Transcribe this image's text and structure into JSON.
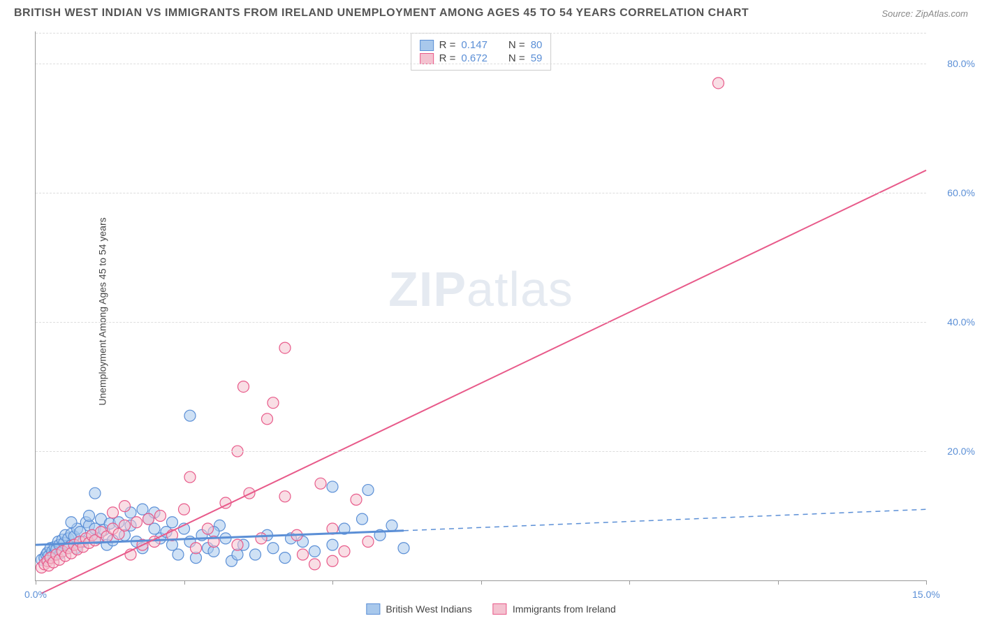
{
  "title": "BRITISH WEST INDIAN VS IMMIGRANTS FROM IRELAND UNEMPLOYMENT AMONG AGES 45 TO 54 YEARS CORRELATION CHART",
  "source": "Source: ZipAtlas.com",
  "y_axis_label": "Unemployment Among Ages 45 to 54 years",
  "watermark_bold": "ZIP",
  "watermark_light": "atlas",
  "chart": {
    "type": "scatter",
    "xlim": [
      0,
      15
    ],
    "ylim": [
      0,
      85
    ],
    "x_ticks": [
      0,
      2.5,
      5,
      7.5,
      10,
      12.5,
      15
    ],
    "y_ticks": [
      20,
      40,
      60,
      80
    ],
    "x_tick_labels": {
      "0": "0.0%",
      "15": "15.0%"
    },
    "y_tick_labels": {
      "20": "20.0%",
      "40": "40.0%",
      "60": "60.0%",
      "80": "80.0%"
    },
    "background_color": "#ffffff",
    "grid_color": "#dddddd",
    "axis_color": "#999999",
    "tick_label_color": "#5b8fd6",
    "marker_radius": 8,
    "marker_opacity": 0.55,
    "series": [
      {
        "name": "British West Indians",
        "color_fill": "#a8c8ec",
        "color_stroke": "#5b8fd6",
        "r_value": "0.147",
        "n_value": "80",
        "trend": {
          "x1": 0,
          "y1": 5.5,
          "x2": 6.2,
          "y2": 7.7,
          "solid_until_x": 6.2,
          "dash_to_x": 15,
          "dash_y2": 11.0,
          "stroke_width": 3
        },
        "points": [
          [
            0.1,
            3.2
          ],
          [
            0.15,
            3.5
          ],
          [
            0.18,
            4.0
          ],
          [
            0.2,
            4.3
          ],
          [
            0.22,
            3.8
          ],
          [
            0.25,
            5.0
          ],
          [
            0.28,
            4.5
          ],
          [
            0.3,
            3.9
          ],
          [
            0.32,
            5.2
          ],
          [
            0.35,
            4.8
          ],
          [
            0.38,
            6.0
          ],
          [
            0.4,
            5.5
          ],
          [
            0.42,
            4.2
          ],
          [
            0.45,
            6.3
          ],
          [
            0.48,
            5.8
          ],
          [
            0.5,
            7.0
          ],
          [
            0.55,
            6.5
          ],
          [
            0.58,
            5.3
          ],
          [
            0.6,
            7.2
          ],
          [
            0.65,
            6.8
          ],
          [
            0.68,
            5.0
          ],
          [
            0.7,
            8.0
          ],
          [
            0.75,
            7.5
          ],
          [
            0.8,
            6.0
          ],
          [
            0.85,
            9.0
          ],
          [
            0.9,
            8.5
          ],
          [
            0.95,
            7.0
          ],
          [
            1.0,
            8.0
          ],
          [
            1.05,
            6.5
          ],
          [
            1.1,
            9.5
          ],
          [
            1.15,
            7.8
          ],
          [
            1.2,
            5.5
          ],
          [
            1.25,
            8.8
          ],
          [
            1.3,
            6.2
          ],
          [
            1.0,
            13.5
          ],
          [
            1.4,
            9.0
          ],
          [
            1.5,
            7.0
          ],
          [
            1.6,
            8.5
          ],
          [
            1.7,
            6.0
          ],
          [
            1.8,
            5.0
          ],
          [
            1.9,
            9.5
          ],
          [
            2.0,
            8.0
          ],
          [
            2.1,
            6.5
          ],
          [
            2.2,
            7.5
          ],
          [
            2.3,
            5.5
          ],
          [
            2.4,
            4.0
          ],
          [
            2.5,
            8.0
          ],
          [
            2.6,
            6.0
          ],
          [
            2.7,
            3.5
          ],
          [
            2.8,
            7.0
          ],
          [
            2.9,
            5.0
          ],
          [
            3.0,
            4.5
          ],
          [
            3.1,
            8.5
          ],
          [
            3.2,
            6.5
          ],
          [
            3.3,
            3.0
          ],
          [
            3.5,
            5.5
          ],
          [
            3.7,
            4.0
          ],
          [
            3.9,
            7.0
          ],
          [
            4.0,
            5.0
          ],
          [
            4.2,
            3.5
          ],
          [
            4.5,
            6.0
          ],
          [
            4.7,
            4.5
          ],
          [
            5.0,
            5.5
          ],
          [
            5.2,
            8.0
          ],
          [
            2.6,
            25.5
          ],
          [
            5.5,
            9.5
          ],
          [
            5.6,
            14.0
          ],
          [
            5.8,
            7.0
          ],
          [
            6.0,
            8.5
          ],
          [
            6.2,
            5.0
          ],
          [
            1.6,
            10.5
          ],
          [
            1.8,
            11.0
          ],
          [
            0.6,
            9.0
          ],
          [
            0.9,
            10.0
          ],
          [
            2.0,
            10.5
          ],
          [
            2.3,
            9.0
          ],
          [
            3.4,
            4.0
          ],
          [
            4.3,
            6.5
          ],
          [
            5.0,
            14.5
          ],
          [
            3.0,
            7.5
          ]
        ]
      },
      {
        "name": "Immigants from Ireland",
        "legend_label": "Immigrants from Ireland",
        "color_fill": "#f4c2d0",
        "color_stroke": "#e85a8a",
        "r_value": "0.672",
        "n_value": "59",
        "trend": {
          "x1": 0.1,
          "y1": -2,
          "x2": 15,
          "y2": 63.5,
          "solid_until_x": 15,
          "stroke_width": 2
        },
        "points": [
          [
            0.1,
            2.0
          ],
          [
            0.15,
            2.5
          ],
          [
            0.2,
            3.0
          ],
          [
            0.22,
            2.3
          ],
          [
            0.25,
            3.5
          ],
          [
            0.3,
            2.8
          ],
          [
            0.35,
            4.0
          ],
          [
            0.4,
            3.2
          ],
          [
            0.45,
            4.5
          ],
          [
            0.5,
            3.8
          ],
          [
            0.55,
            5.0
          ],
          [
            0.6,
            4.2
          ],
          [
            0.65,
            5.5
          ],
          [
            0.7,
            4.8
          ],
          [
            0.75,
            6.0
          ],
          [
            0.8,
            5.2
          ],
          [
            0.85,
            6.5
          ],
          [
            0.9,
            5.8
          ],
          [
            0.95,
            7.0
          ],
          [
            1.0,
            6.2
          ],
          [
            1.1,
            7.5
          ],
          [
            1.2,
            6.8
          ],
          [
            1.3,
            8.0
          ],
          [
            1.4,
            7.2
          ],
          [
            1.5,
            8.5
          ],
          [
            1.6,
            4.0
          ],
          [
            1.7,
            9.0
          ],
          [
            1.8,
            5.5
          ],
          [
            1.9,
            9.5
          ],
          [
            2.0,
            6.0
          ],
          [
            2.1,
            10.0
          ],
          [
            2.3,
            7.0
          ],
          [
            2.5,
            11.0
          ],
          [
            2.6,
            16.0
          ],
          [
            2.7,
            5.0
          ],
          [
            2.9,
            8.0
          ],
          [
            3.0,
            6.0
          ],
          [
            3.2,
            12.0
          ],
          [
            3.4,
            5.5
          ],
          [
            3.5,
            30.0
          ],
          [
            3.6,
            13.5
          ],
          [
            3.8,
            6.5
          ],
          [
            3.9,
            25.0
          ],
          [
            4.0,
            27.5
          ],
          [
            4.2,
            13.0
          ],
          [
            4.2,
            36.0
          ],
          [
            4.4,
            7.0
          ],
          [
            4.5,
            4.0
          ],
          [
            4.7,
            2.5
          ],
          [
            4.8,
            15.0
          ],
          [
            5.0,
            8.0
          ],
          [
            5.2,
            4.5
          ],
          [
            5.4,
            12.5
          ],
          [
            5.6,
            6.0
          ],
          [
            3.4,
            20.0
          ],
          [
            5.0,
            3.0
          ],
          [
            11.5,
            77.0
          ],
          [
            1.3,
            10.5
          ],
          [
            1.5,
            11.5
          ]
        ]
      }
    ]
  },
  "stats_box": {
    "r_label": "R  =",
    "n_label": "N  ="
  },
  "bottom_legend": {
    "label1": "British West Indians",
    "label2": "Immigrants from Ireland"
  }
}
